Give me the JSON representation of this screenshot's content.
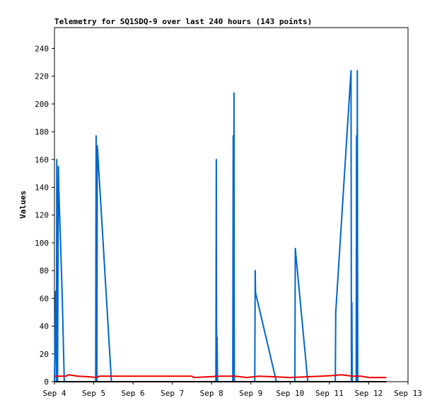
{
  "chart_data": {
    "type": "line",
    "title": "Telemetry for SQ1SDQ-9 over last 240 hours (143 points)",
    "xlabel": "",
    "ylabel": "Values",
    "xlim": [
      4.0,
      13.0
    ],
    "ylim": [
      0,
      255
    ],
    "x_ticks": [
      {
        "value": 4,
        "label": "Sep 4"
      },
      {
        "value": 5,
        "label": "Sep 5"
      },
      {
        "value": 6,
        "label": "Sep 6"
      },
      {
        "value": 7,
        "label": "Sep 7"
      },
      {
        "value": 8,
        "label": "Sep 8"
      },
      {
        "value": 9,
        "label": "Sep 9"
      },
      {
        "value": 10,
        "label": "Sep 10"
      },
      {
        "value": 11,
        "label": "Sep 11"
      },
      {
        "value": 12,
        "label": "Sep 12"
      },
      {
        "value": 13,
        "label": "Sep 13"
      }
    ],
    "y_ticks": [
      0,
      20,
      40,
      60,
      80,
      100,
      120,
      140,
      160,
      180,
      200,
      220,
      240
    ],
    "grid": false,
    "series": [
      {
        "color": "#0066cc",
        "points": [
          [
            4.0,
            0
          ],
          [
            4.03,
            65
          ],
          [
            4.05,
            0
          ],
          [
            4.06,
            160
          ],
          [
            4.08,
            0
          ],
          [
            4.1,
            155
          ],
          [
            4.11,
            140
          ],
          [
            4.2,
            60
          ],
          [
            4.25,
            0
          ],
          [
            4.26,
            0
          ],
          [
            5.05,
            0
          ],
          [
            5.06,
            177
          ],
          [
            5.08,
            0
          ],
          [
            5.09,
            170
          ],
          [
            5.45,
            0
          ],
          [
            5.5,
            0
          ],
          [
            8.11,
            0
          ],
          [
            8.12,
            160
          ],
          [
            8.13,
            0
          ],
          [
            8.14,
            32
          ],
          [
            8.15,
            0
          ],
          [
            8.54,
            0
          ],
          [
            8.55,
            177
          ],
          [
            8.56,
            0
          ],
          [
            8.57,
            208
          ],
          [
            8.58,
            0
          ],
          [
            9.1,
            0
          ],
          [
            9.11,
            80
          ],
          [
            9.12,
            64
          ],
          [
            9.65,
            0
          ],
          [
            9.66,
            0
          ],
          [
            10.12,
            0
          ],
          [
            10.13,
            96
          ],
          [
            10.45,
            0
          ],
          [
            10.46,
            0
          ],
          [
            11.15,
            0
          ],
          [
            11.16,
            50
          ],
          [
            11.55,
            224
          ],
          [
            11.56,
            0
          ],
          [
            11.57,
            57
          ],
          [
            11.58,
            0
          ],
          [
            11.68,
            0
          ],
          [
            11.69,
            177
          ],
          [
            11.7,
            0
          ],
          [
            11.71,
            224
          ],
          [
            11.72,
            0
          ]
        ]
      },
      {
        "color": "#ee0000",
        "points": [
          [
            4.0,
            4
          ],
          [
            4.3,
            4
          ],
          [
            4.35,
            5
          ],
          [
            4.6,
            4
          ],
          [
            4.9,
            3.5
          ],
          [
            5.05,
            3
          ],
          [
            5.15,
            4
          ],
          [
            5.6,
            4
          ],
          [
            6.5,
            4
          ],
          [
            7.5,
            4
          ],
          [
            7.55,
            3
          ],
          [
            7.9,
            3.5
          ],
          [
            8.2,
            4
          ],
          [
            8.6,
            4
          ],
          [
            8.9,
            3
          ],
          [
            9.2,
            4
          ],
          [
            9.6,
            3.5
          ],
          [
            10.0,
            3
          ],
          [
            10.4,
            3.5
          ],
          [
            10.8,
            4
          ],
          [
            11.1,
            4.5
          ],
          [
            11.3,
            5
          ],
          [
            11.6,
            4
          ],
          [
            11.8,
            4
          ],
          [
            12.0,
            3
          ],
          [
            12.4,
            3
          ],
          [
            12.45,
            3
          ]
        ]
      },
      {
        "color": "#000000",
        "points": [
          [
            4.0,
            0
          ],
          [
            12.45,
            0
          ]
        ]
      }
    ]
  }
}
